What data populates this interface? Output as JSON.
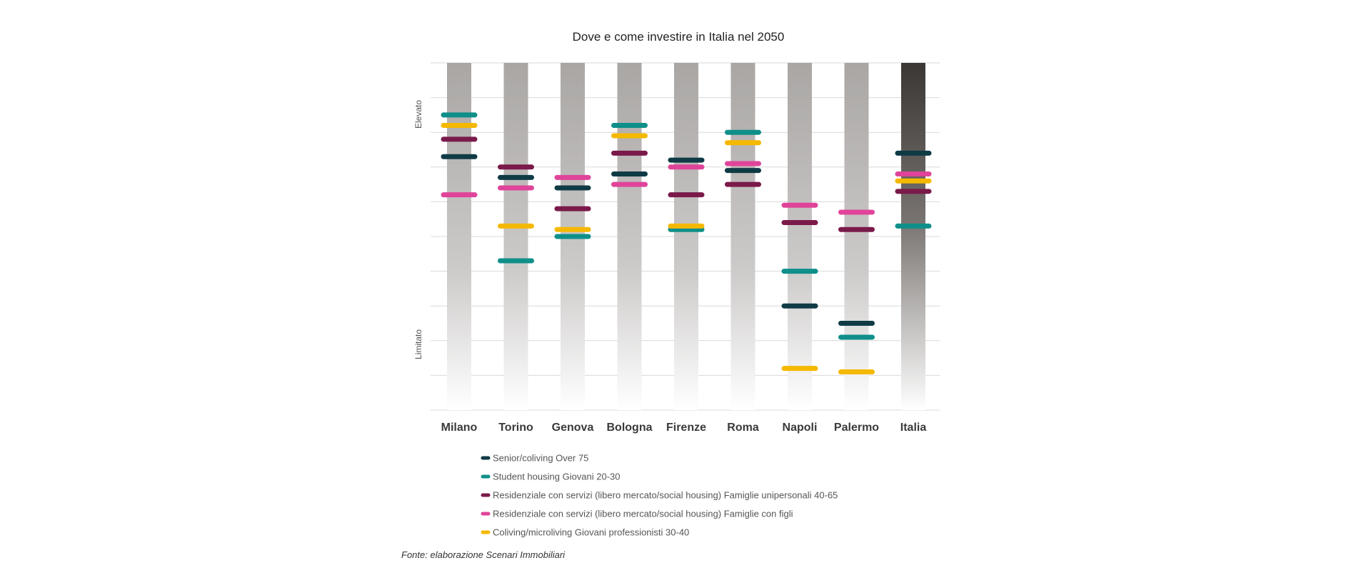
{
  "chart_data": {
    "type": "scatter",
    "title": "Dove e come investire in Italia nel 2050",
    "y_axis": {
      "high_label": "Elevato",
      "low_label": "Limitato",
      "ylim": [
        0,
        100
      ],
      "grid": true
    },
    "categories": [
      "Milano",
      "Torino",
      "Genova",
      "Bologna",
      "Firenze",
      "Roma",
      "Napoli",
      "Palermo",
      "Italia"
    ],
    "series": [
      {
        "name": "Senior/coliving Over 75",
        "color": "#0f3b45",
        "values": [
          73,
          67,
          64,
          68,
          72,
          69,
          30,
          25,
          74
        ]
      },
      {
        "name": "Student housing Giovani 20-30",
        "color": "#0f8f8a",
        "values": [
          85,
          43,
          50,
          82,
          52,
          80,
          40,
          21,
          53
        ]
      },
      {
        "name": "Residenziale con servizi (libero mercato/social housing) Famiglie unipersonali 40-65",
        "color": "#7a1a4a",
        "values": [
          78,
          70,
          58,
          74,
          62,
          65,
          54,
          52,
          63
        ]
      },
      {
        "name": "Residenziale con servizi (libero mercato/social housing) Famiglie con figli",
        "color": "#e0449a",
        "values": [
          62,
          64,
          67,
          65,
          70,
          71,
          59,
          57,
          68
        ]
      },
      {
        "name": "Coliving/microliving Giovani professionisti 30-40",
        "color": "#f5b800",
        "values": [
          82,
          53,
          52,
          79,
          53,
          77,
          12,
          11,
          66
        ]
      }
    ],
    "legend_position": "bottom",
    "highlight_category": "Italia"
  },
  "source_note": "Fonte: elaborazione Scenari Immobiliari"
}
